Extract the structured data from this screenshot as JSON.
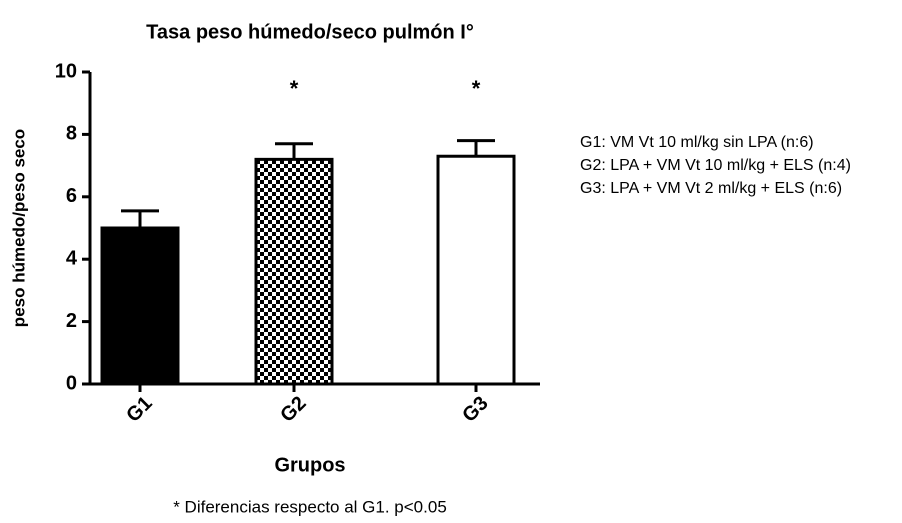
{
  "chart_data": {
    "type": "bar",
    "title": "Tasa peso húmedo/seco pulmón I°",
    "x_label": "Grupos",
    "y_label": "peso húmedo/peso seco",
    "categories": [
      "G1",
      "G2",
      "G3"
    ],
    "values": [
      5.0,
      7.2,
      7.3
    ],
    "errors": [
      0.55,
      0.5,
      0.5
    ],
    "bar_styles": [
      "solid",
      "checkered",
      "hollow"
    ],
    "color": "#000000",
    "ylim": [
      0,
      10
    ],
    "yticks": [
      0,
      2,
      4,
      6,
      8,
      10
    ],
    "annotations": [
      {
        "category": "G2",
        "text": "*"
      },
      {
        "category": "G3",
        "text": "*"
      }
    ],
    "notes": [
      "G1: VM Vt 10 ml/kg sin LPA (n:6)",
      "G2: LPA + VM Vt 10 ml/kg + ELS (n:4)",
      "G3: LPA + VM Vt 2 ml/kg + ELS (n:6)"
    ],
    "footnote": "* Diferencias respecto al G1. p<0.05"
  }
}
